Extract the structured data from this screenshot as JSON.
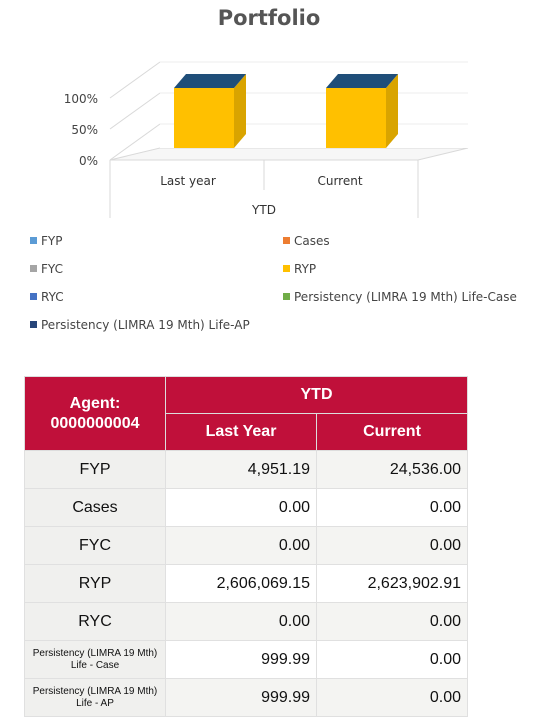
{
  "chart_data": {
    "type": "bar",
    "title": "Portfolio",
    "xlabel": "YTD",
    "categories": [
      "Last year",
      "Current"
    ],
    "yticks": [
      "100%",
      "50%",
      "0%"
    ],
    "ylim": [
      0,
      1
    ],
    "series": [
      {
        "name": "RYP",
        "values": [
          1.0,
          1.0
        ],
        "color": "#ffc000"
      }
    ],
    "legend": [
      {
        "name": "FYP",
        "color": "#5b9bd5"
      },
      {
        "name": "Cases",
        "color": "#ed7d31"
      },
      {
        "name": "FYC",
        "color": "#a5a5a5"
      },
      {
        "name": "RYP",
        "color": "#ffc000"
      },
      {
        "name": "RYC",
        "color": "#4472c4"
      },
      {
        "name": "Persistency (LIMRA 19 Mth) Life-Case",
        "color": "#70ad47"
      },
      {
        "name": "Persistency (LIMRA 19 Mth) Life-AP",
        "color": "#264478"
      }
    ],
    "legend_position": "bottom",
    "grid": true
  },
  "table": {
    "agent_header": "Agent:\n0000000004",
    "group_header": "YTD",
    "col_last": "Last Year",
    "col_current": "Current",
    "rows": [
      {
        "label": "FYP",
        "last": "4,951.19",
        "current": "24,536.00"
      },
      {
        "label": "Cases",
        "last": "0.00",
        "current": "0.00"
      },
      {
        "label": "FYC",
        "last": "0.00",
        "current": "0.00"
      },
      {
        "label": "RYP",
        "last": "2,606,069.15",
        "current": "2,623,902.91"
      },
      {
        "label": "RYC",
        "last": "0.00",
        "current": "0.00"
      },
      {
        "label": "Persistency (LIMRA 19 Mth)\nLife - Case",
        "last": "999.99",
        "current": "0.00"
      },
      {
        "label": "Persistency (LIMRA 19 Mth)\nLife - AP",
        "last": "999.99",
        "current": "0.00"
      }
    ]
  }
}
